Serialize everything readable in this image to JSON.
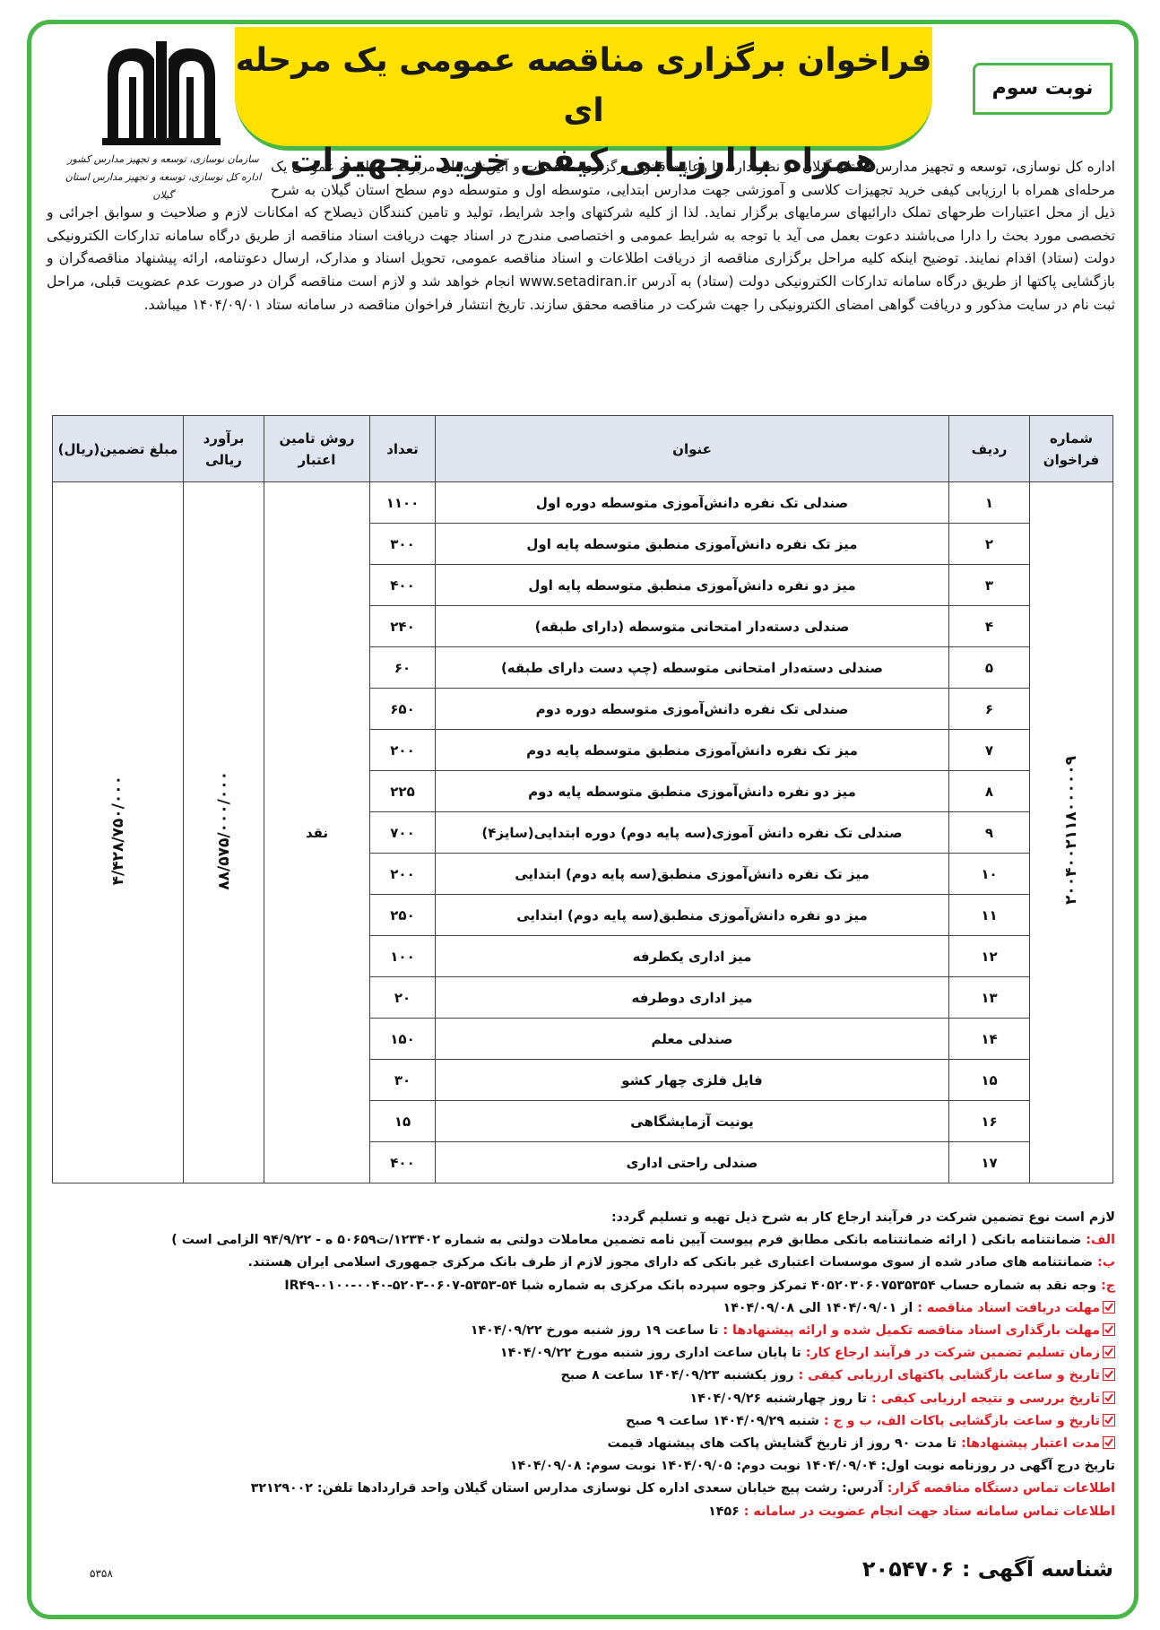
{
  "header": {
    "title": [
      "فراخوان برگزاری مناقصه عمومی یک مرحله ای",
      "همراه با ارزیابی کیفی خرید تجهیزات"
    ],
    "round": "نوبت سوم",
    "org": [
      "سازمان نوسازی، توسعه و تجهیز مدارس کشور",
      "اداره کل نوسازی، توسعه و تجهیز مدارس استان گیلان"
    ]
  },
  "intro": "اداره کل نوسازی، توسعه و تجهیز مدارس استان گیلان در نظر دارد، با رعایت قانون برگزاری مناقصات و آئین‌نامه‌های مربوطه، مناقصه عمومی یک مرحله‌ای همراه با ارزیابی کیفی خرید تجهیزات کلاسی و آموزشی جهت مدارس ابتدایی، متوسطه اول و متوسطه دوم سطح استان گیلان به شرح ذیل از محل اعتبارات طرحهای تملک دارائیهای سرمایهای برگزار نماید. لذا از کلیه شرکتهای واجد شرایط، تولید و تامین کنندگان ذیصلاح که امکانات لازم و صلاحیت و سوابق اجرائی و تخصصی مورد بحث را دارا می‌باشند دعوت بعمل می آید با توجه به شرایط عمومی و اختصاصی مندرج در اسناد جهت دریافت اسناد مناقصه از طریق درگاه سامانه تدارکات الکترونیکی دولت (ستاد) اقدام نمایند. توضیح اینکه کلیه مراحل برگزاری مناقصه از دریافت اطلاعات و اسناد مناقصه عمومی، تحویل اسناد و مدارک، ارسال دعوتنامه، ارائه پیشنهاد مناقصه‌گران و بازگشایی پاکتها از طریق درگاه سامانه تدارکات الکترونیکی دولت (ستاد) به آدرس www.setadiran.ir انجام خواهد شد و لازم است مناقصه گران در صورت عدم عضویت قبلی، مراحل ثبت نام در سایت مذکور و دریافت گواهی امضای الکترونیکی را جهت شرکت در مناقصه محقق سازند. تاریخ انتشار فراخوان مناقصه در سامانه ستاد ۱۴۰۴/۰۹/۰۱ میباشد.",
  "table": {
    "headers": [
      "شماره فراخوان",
      "ردیف",
      "عنوان",
      "تعداد",
      "روش تامین اعتبار",
      "برآورد ریالی",
      "مبلغ تضمین(ریال)"
    ],
    "call_number": "۲۰۰۴۰۰۲۱۱۸۰۰۰۰۰۹",
    "funding": "نقد",
    "estimate": "۸۸/۵۷۵/۰۰۰/۰۰۰",
    "guarantee": "۴/۴۲۸/۷۵۰/۰۰۰",
    "rows": [
      [
        "۱",
        "صندلی تک نفره دانش‌آموزی متوسطه دوره اول",
        "۱۱۰۰"
      ],
      [
        "۲",
        "میز تک نفره دانش‌آموزی منطبق متوسطه پایه اول",
        "۳۰۰"
      ],
      [
        "۳",
        "میز دو نفره دانش‌آموزی منطبق متوسطه پایه اول",
        "۴۰۰"
      ],
      [
        "۴",
        "صندلی دسته‌دار امتحانی متوسطه (دارای طبقه)",
        "۲۴۰"
      ],
      [
        "۵",
        "صندلی دسته‌دار امتحانی متوسطه (چپ دست دارای طبقه)",
        "۶۰"
      ],
      [
        "۶",
        "صندلی تک نفره دانش‌آموزی متوسطه دوره دوم",
        "۶۵۰"
      ],
      [
        "۷",
        "میز تک نفره دانش‌آموزی منطبق متوسطه پایه دوم",
        "۲۰۰"
      ],
      [
        "۸",
        "میز دو نفره دانش‌آموزی منطبق متوسطه پایه دوم",
        "۲۲۵"
      ],
      [
        "۹",
        "صندلی تک نفره دانش آموزی(سه پایه دوم) دوره ابتدایی(سایز۴)",
        "۷۰۰"
      ],
      [
        "۱۰",
        "میز تک نفره دانش‌آموزی منطبق(سه پایه دوم) ابتدایی",
        "۲۰۰"
      ],
      [
        "۱۱",
        "میز دو نفره دانش‌آموزی منطبق(سه پایه دوم) ابتدایی",
        "۲۵۰"
      ],
      [
        "۱۲",
        "میز اداری یکطرفه",
        "۱۰۰"
      ],
      [
        "۱۳",
        "میز اداری دوطرفه",
        "۲۰"
      ],
      [
        "۱۴",
        "صندلی معلم",
        "۱۵۰"
      ],
      [
        "۱۵",
        "فایل فلزی چهار کشو",
        "۳۰"
      ],
      [
        "۱۶",
        "یونیت آزمایشگاهی",
        "۱۵"
      ],
      [
        "۱۷",
        "صندلی راحتی اداری",
        "۴۰۰"
      ]
    ]
  },
  "notes": {
    "heading": "لازم است نوع تضمین شرکت در فرآیند ارجاع کار به شرح ذیل تهیه و تسلیم گردد:",
    "guarantees": [
      {
        "label": "الف:",
        "text": "ضمانتنامه بانکی ( ارائه ضمانتنامه بانکی مطابق فرم پیوست آیین نامه تضمین معاملات دولتی به شماره ۱۲۳۴۰۲/ت۵۰۶۵۹ ه - ۹۴/۹/۲۲ الزامی است )"
      },
      {
        "label": "ب:",
        "text": "ضمانتنامه های صادر شده از سوی موسسات اعتباری غیر بانکی که دارای مجوز لازم از طرف بانک مرکزی جمهوری اسلامی ایران هستند."
      },
      {
        "label": "ج:",
        "text": "وجه نقد به شماره حساب ۴۰۵۲۰۳۰۶۰۷۵۳۵۳۵۴ تمرکز وجوه سپرده بانک مرکزی به شماره شبا IR۴۹-۰۱۰۰-۰۰۴۰-۵۲۰۳-۰۶۰۷-۵۳۵۳-۵۴"
      }
    ],
    "schedule": [
      {
        "label": "مهلت دریافت اسناد مناقصه :",
        "text": "از ۱۴۰۴/۰۹/۰۱ الی ۱۴۰۴/۰۹/۰۸"
      },
      {
        "label": "مهلت بارگذاری اسناد مناقصه تکمیل شده و ارائه پیشنهادها :",
        "text": "تا ساعت ۱۹ روز شنبه مورخ ۱۴۰۴/۰۹/۲۲"
      },
      {
        "label": "زمان تسلیم تضمین شرکت در فرآیند ارجاع کار:",
        "text": "تا پایان ساعت اداری روز شنبه مورخ ۱۴۰۴/۰۹/۲۲"
      },
      {
        "label": "تاریخ و ساعت بازگشایی پاکتهای ارزیابی کیفی :",
        "text": "روز یکشنبه ۱۴۰۴/۰۹/۲۳ ساعت ۸ صبح"
      },
      {
        "label": "تاریخ بررسی و نتیجه ارزیابی کیفی :",
        "text": "تا روز چهارشنبه ۱۴۰۴/۰۹/۲۶"
      },
      {
        "label": "تاریخ و ساعت بازگشایی پاکات الف، ب و ج :",
        "text": "شنبه ۱۴۰۴/۰۹/۲۹ ساعت ۹ صبح"
      },
      {
        "label": "مدت اعتبار پیشنهادها:",
        "text": "تا مدت ۹۰ روز از تاریخ گشایش پاکت های پیشنهاد قیمت"
      }
    ],
    "publication": "تاریخ درج آگهی در روزنامه نوبت اول: ۱۴۰۴/۰۹/۰۴   نوبت دوم: ۱۴۰۴/۰۹/۰۵   نوبت سوم: ۱۴۰۴/۰۹/۰۸",
    "contacts": [
      {
        "label": "اطلاعات تماس دستگاه مناقصه گزار:",
        "text": "آدرس: رشت پیچ خیابان سعدی اداره کل نوسازی مدارس استان گیلان واحد قراردادها  تلفن: ۳۲۱۲۹۰۰۲"
      },
      {
        "label": "اطلاعات تماس سامانه ستاد جهت انجام عضویت در سامانه :",
        "text": "۱۴۵۶"
      }
    ]
  },
  "footer": {
    "ad_id_label": "شناسه آگهی :",
    "ad_id": "۲۰۵۴۷۰۶",
    "code": "۵۳۵۸"
  }
}
